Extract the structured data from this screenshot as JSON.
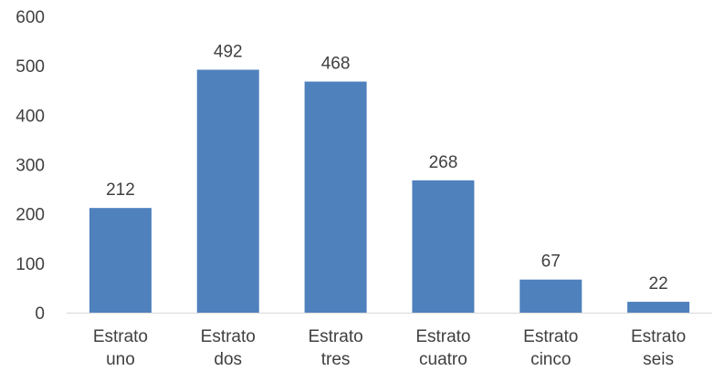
{
  "chart_data": {
    "type": "bar",
    "title": "",
    "xlabel": "",
    "ylabel": "",
    "categories": [
      [
        "Estrato",
        "uno"
      ],
      [
        "Estrato",
        "dos"
      ],
      [
        "Estrato",
        "tres"
      ],
      [
        "Estrato",
        "cuatro"
      ],
      [
        "Estrato",
        "cinco"
      ],
      [
        "Estrato",
        "seis"
      ]
    ],
    "values": [
      212,
      492,
      468,
      268,
      67,
      22
    ],
    "data_labels": [
      "212",
      "492",
      "468",
      "268",
      "67",
      "22"
    ],
    "ylim": [
      0,
      600
    ],
    "yticks": [
      0,
      100,
      200,
      300,
      400,
      500,
      600
    ],
    "ytick_labels": [
      "0",
      "100",
      "200",
      "300",
      "400",
      "500",
      "600"
    ],
    "grid": false,
    "legend": "none",
    "bar_color": "#4f81bd",
    "axis_color": "#d9d9d9"
  }
}
